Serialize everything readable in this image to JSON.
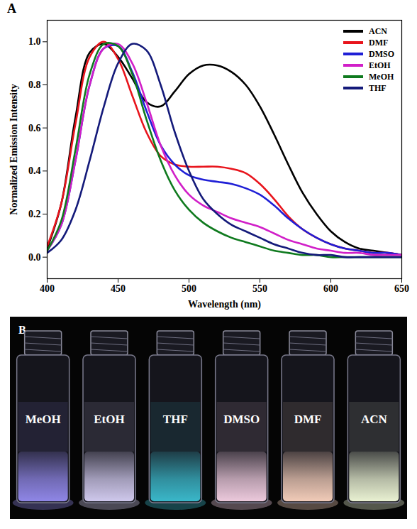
{
  "chart_data": {
    "type": "line",
    "panel": "A",
    "x_label": "Wavelength (nm)",
    "y_label": "Normalized Emission Intensity",
    "x": [
      400,
      410,
      420,
      430,
      440,
      450,
      460,
      470,
      480,
      490,
      500,
      510,
      520,
      530,
      540,
      550,
      560,
      570,
      580,
      590,
      600,
      610,
      620,
      630,
      640,
      650
    ],
    "series": [
      {
        "name": "ACN",
        "color": "#000000",
        "values": [
          0.04,
          0.25,
          0.65,
          0.95,
          0.99,
          0.93,
          0.83,
          0.72,
          0.7,
          0.77,
          0.85,
          0.89,
          0.89,
          0.86,
          0.8,
          0.7,
          0.57,
          0.43,
          0.3,
          0.2,
          0.12,
          0.07,
          0.04,
          0.03,
          0.02,
          0.01
        ]
      },
      {
        "name": "DMF",
        "color": "#e8141c",
        "values": [
          0.05,
          0.25,
          0.62,
          0.93,
          1.0,
          0.92,
          0.75,
          0.58,
          0.47,
          0.43,
          0.42,
          0.42,
          0.42,
          0.41,
          0.39,
          0.34,
          0.27,
          0.19,
          0.13,
          0.09,
          0.06,
          0.04,
          0.03,
          0.02,
          0.02,
          0.01
        ]
      },
      {
        "name": "DMSO",
        "color": "#1f1fd6",
        "values": [
          0.03,
          0.15,
          0.45,
          0.8,
          0.97,
          0.98,
          0.86,
          0.68,
          0.52,
          0.43,
          0.38,
          0.36,
          0.35,
          0.34,
          0.32,
          0.29,
          0.24,
          0.18,
          0.13,
          0.09,
          0.06,
          0.04,
          0.03,
          0.02,
          0.02,
          0.01
        ]
      },
      {
        "name": "EtOH",
        "color": "#d11fc8",
        "values": [
          0.03,
          0.15,
          0.45,
          0.8,
          0.97,
          0.99,
          0.9,
          0.72,
          0.52,
          0.38,
          0.29,
          0.24,
          0.21,
          0.18,
          0.16,
          0.14,
          0.11,
          0.08,
          0.06,
          0.04,
          0.03,
          0.02,
          0.02,
          0.01,
          0.01,
          0.01
        ]
      },
      {
        "name": "MeOH",
        "color": "#0f7a1e",
        "values": [
          0.03,
          0.17,
          0.5,
          0.85,
          0.99,
          0.98,
          0.85,
          0.64,
          0.45,
          0.31,
          0.22,
          0.16,
          0.12,
          0.09,
          0.07,
          0.05,
          0.03,
          0.02,
          0.01,
          0.01,
          0,
          0,
          0,
          0,
          0,
          0
        ]
      },
      {
        "name": "THF",
        "color": "#141a7a",
        "values": [
          0.02,
          0.08,
          0.22,
          0.45,
          0.7,
          0.9,
          0.99,
          0.96,
          0.8,
          0.58,
          0.4,
          0.27,
          0.2,
          0.15,
          0.12,
          0.09,
          0.06,
          0.04,
          0.02,
          0.01,
          0.01,
          0,
          0,
          0,
          0,
          0
        ]
      }
    ],
    "xlim": [
      400,
      650
    ],
    "xticks": [
      400,
      450,
      500,
      550,
      600,
      650
    ],
    "ylim": [
      -0.1,
      1.1
    ],
    "yticks": [
      {
        "value": 0,
        "label": "0.0"
      },
      {
        "value": 0.2,
        "label": "0.2"
      },
      {
        "value": 0.4,
        "label": "0.4"
      },
      {
        "value": 0.6,
        "label": "0.6"
      },
      {
        "value": 0.8,
        "label": "0.8"
      },
      {
        "value": 1,
        "label": "1.0"
      }
    ],
    "grid": false,
    "legend": "top-right"
  },
  "photo": {
    "panel": "B",
    "vials": [
      {
        "label": "MeOH",
        "color": "#8f86e6"
      },
      {
        "label": "EtOH",
        "color": "#cfc8ec"
      },
      {
        "label": "THF",
        "color": "#3ab7c9"
      },
      {
        "label": "DMSO",
        "color": "#ecc9dc"
      },
      {
        "label": "DMF",
        "color": "#f1cbb8"
      },
      {
        "label": "ACN",
        "color": "#e9f1d2"
      }
    ]
  }
}
